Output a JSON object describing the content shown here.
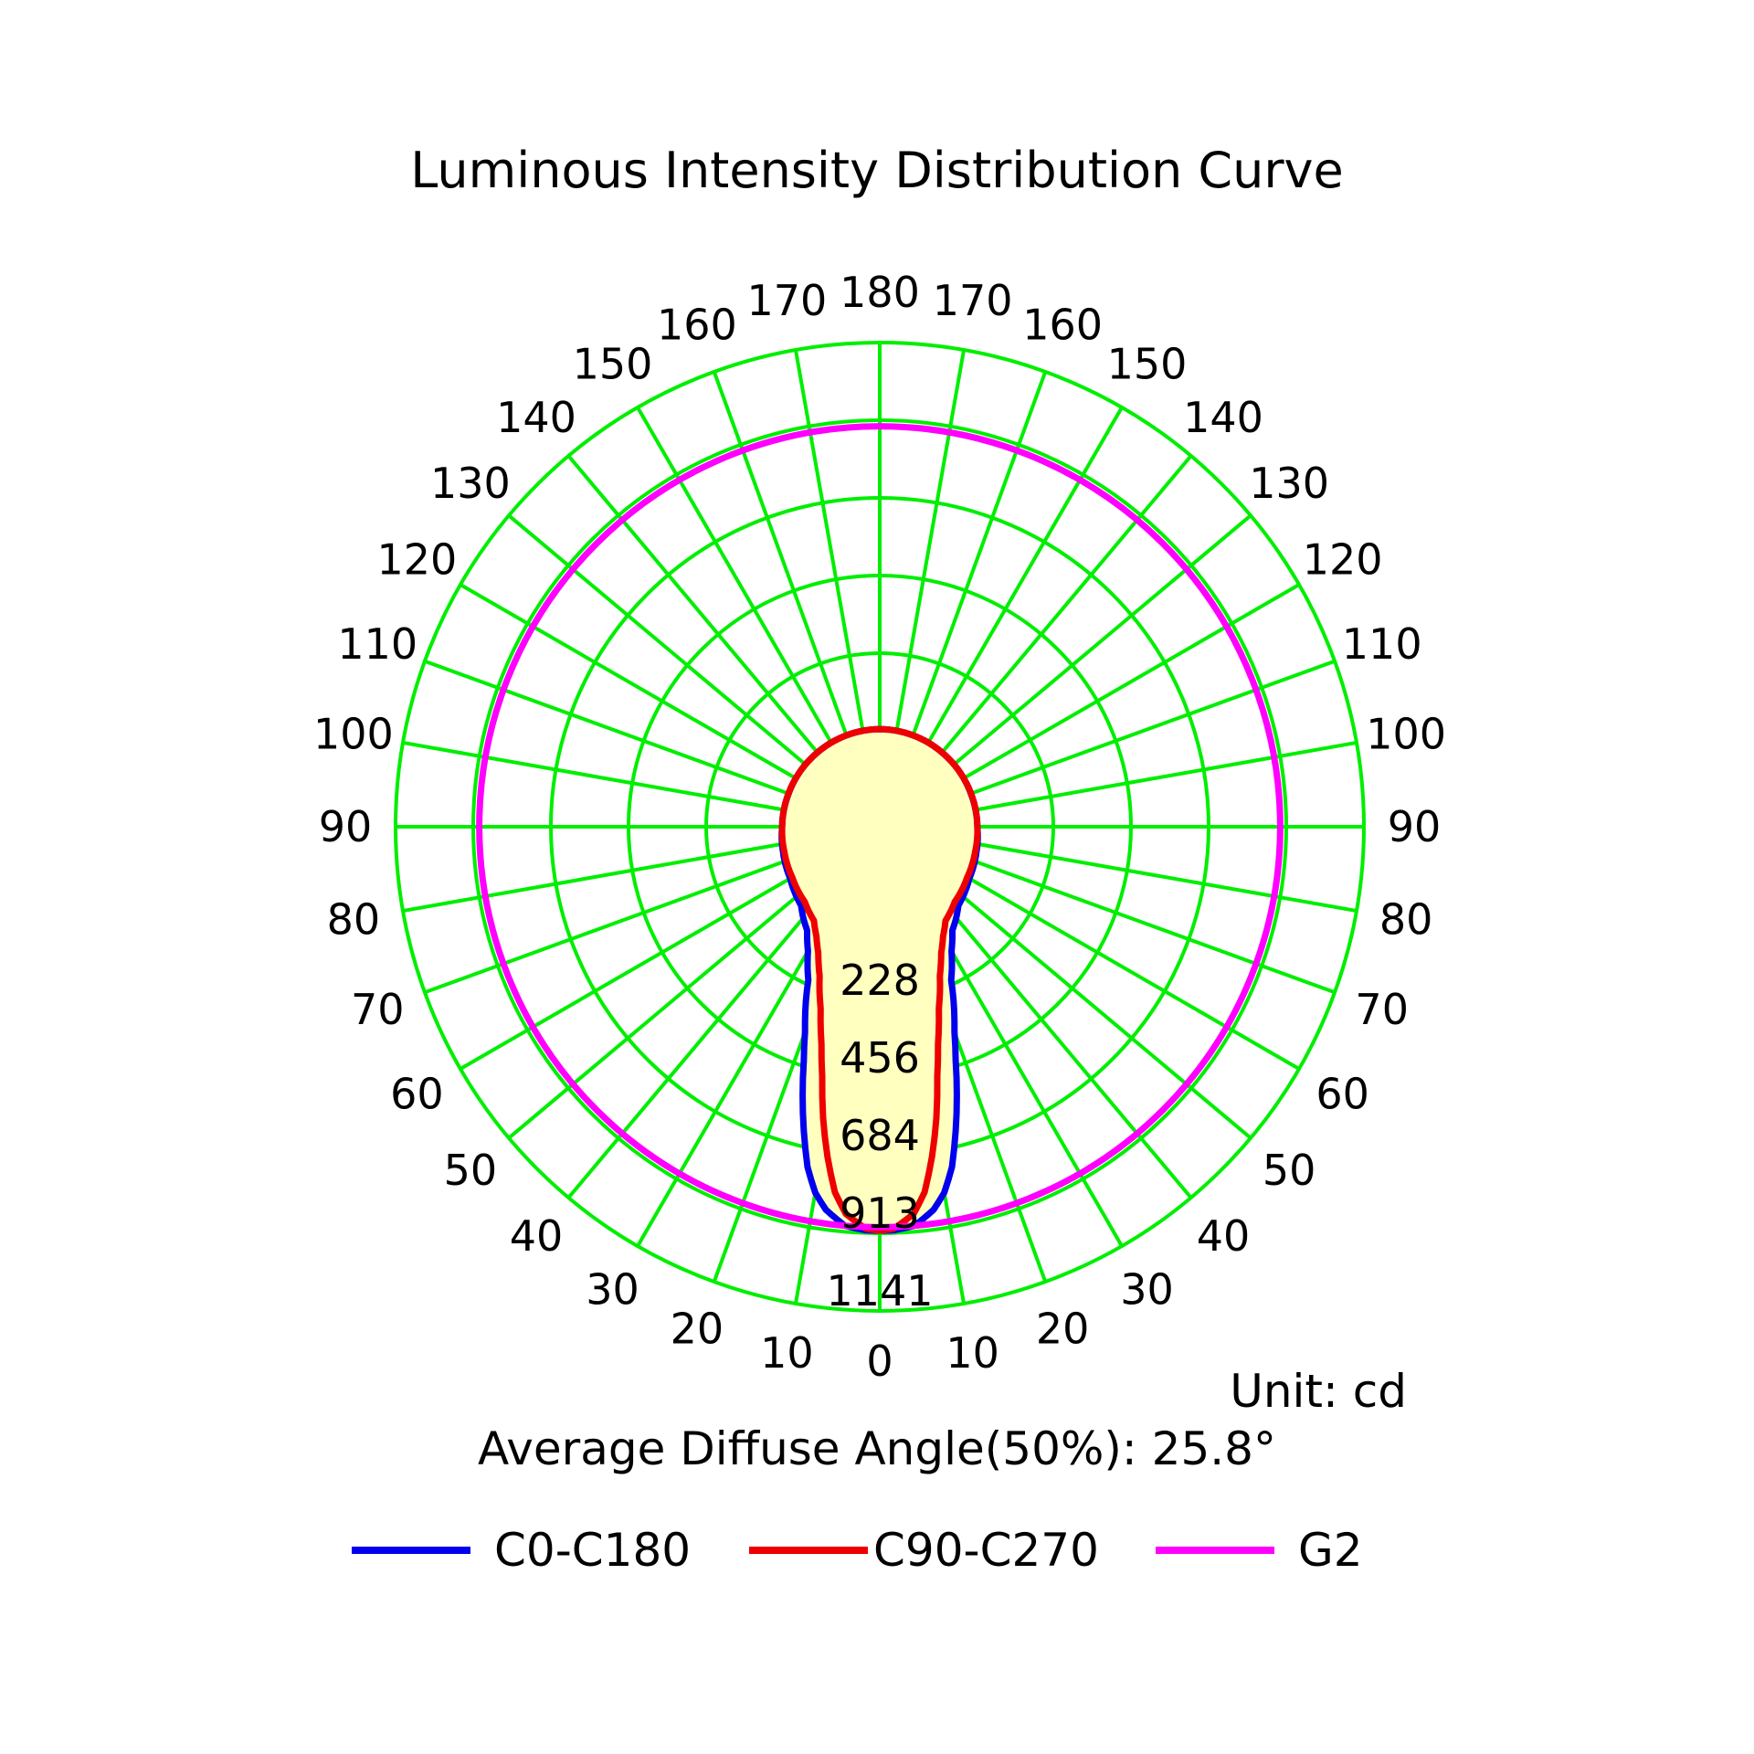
{
  "chart_data": {
    "type": "polar-line",
    "title": "Luminous Intensity Distribution Curve",
    "unit_label": "Unit: cd",
    "diffuse_label": "Average Diffuse Angle(50%): 25.8°",
    "angle_labels_left": [
      "0",
      "10",
      "20",
      "30",
      "40",
      "50",
      "60",
      "70",
      "80",
      "90",
      "100",
      "110",
      "120",
      "130",
      "140",
      "150",
      "160",
      "170",
      "180"
    ],
    "angle_labels_right": [
      "10",
      "20",
      "30",
      "40",
      "50",
      "60",
      "70",
      "80",
      "90",
      "100",
      "110",
      "120",
      "130",
      "140",
      "150",
      "160",
      "170"
    ],
    "ring_labels": [
      "228",
      "456",
      "684",
      "913",
      "1141"
    ],
    "rmax": 1141,
    "angle_unit": "degrees from nadir (0 = bottom)",
    "fill_color": "#ffffc0",
    "grid_color": "#00ee00",
    "series": [
      {
        "name": "C0-C180",
        "color": "#0000ee",
        "angles": [
          0,
          2,
          5,
          8,
          10,
          12,
          14,
          16,
          18,
          20,
          25,
          30,
          35,
          45,
          60,
          75,
          90,
          100,
          110,
          125,
          140,
          160,
          180
        ],
        "values": [
          905,
          905,
          895,
          855,
          810,
          740,
          640,
          540,
          440,
          360,
          215,
          140,
          90,
          45,
          22,
          12,
          5,
          4,
          3,
          3,
          3,
          4,
          5
        ]
      },
      {
        "name": "C90-C270",
        "color": "#ee0000",
        "angles": [
          0,
          2,
          5,
          7,
          9,
          11,
          13,
          15,
          18,
          22,
          26,
          30,
          35,
          45,
          60,
          75,
          90,
          105,
          120,
          140,
          160,
          180
        ],
        "values": [
          905,
          900,
          860,
          800,
          700,
          590,
          470,
          380,
          280,
          190,
          130,
          90,
          55,
          30,
          15,
          8,
          5,
          4,
          3,
          3,
          4,
          5
        ]
      },
      {
        "name": "G2",
        "color": "#ff00ff",
        "shape": "circle",
        "values": [
          895
        ]
      }
    ],
    "legend": {
      "placement": "bottom",
      "entries": [
        "C0-C180",
        "C90-C270",
        "G2"
      ]
    }
  }
}
